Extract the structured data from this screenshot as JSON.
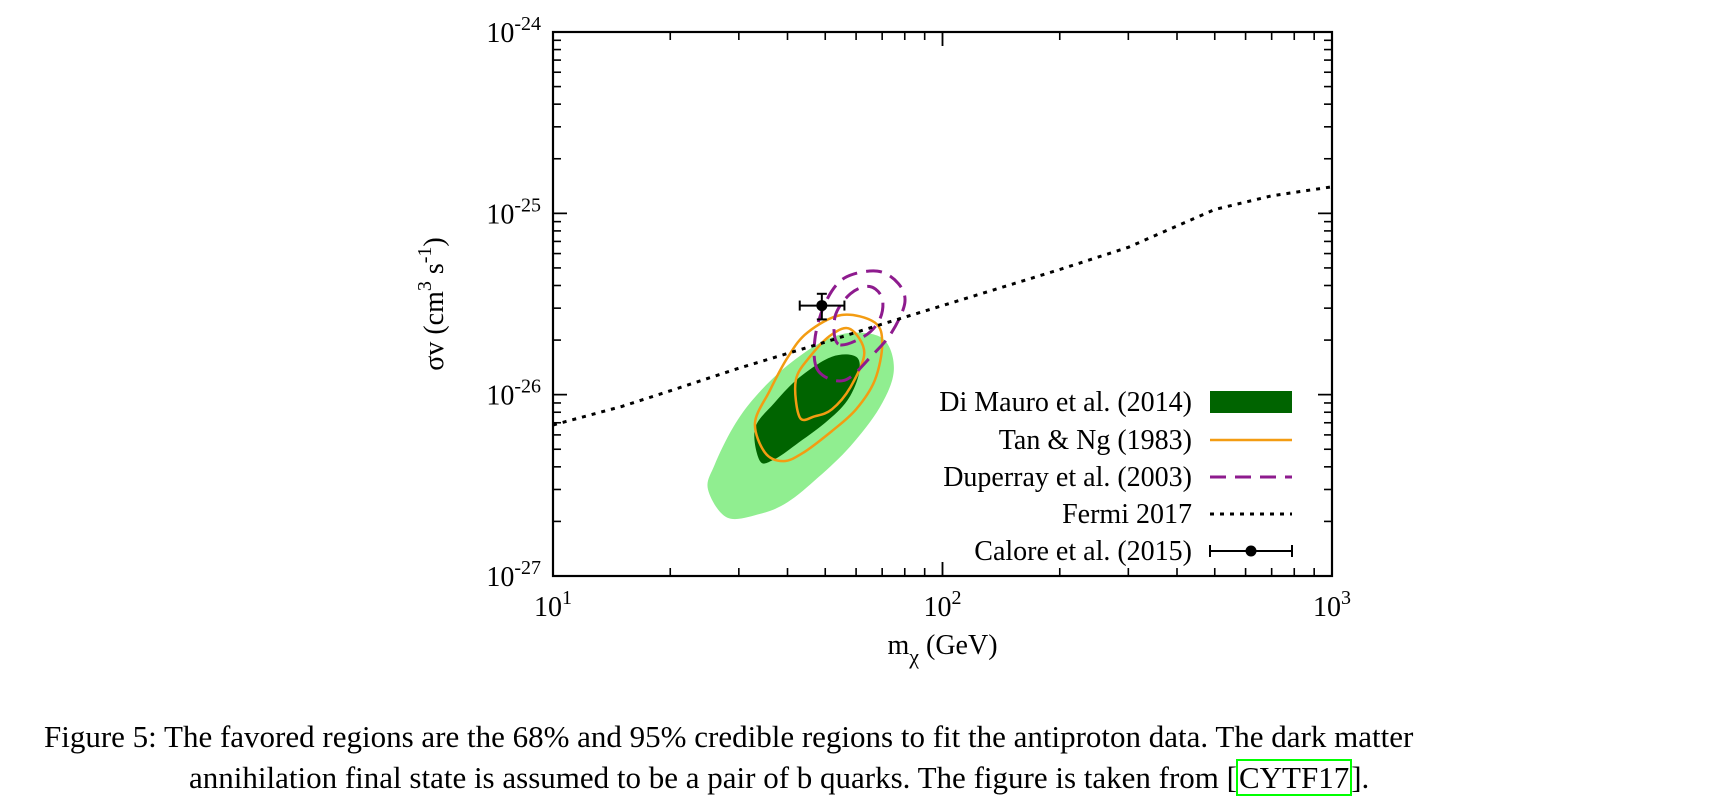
{
  "chart_data": {
    "type": "area",
    "x_scale": "log",
    "y_scale": "log",
    "xlim": [
      10,
      1000
    ],
    "ylim": [
      1e-27,
      1e-24
    ],
    "xlabel": "m_χ (GeV)",
    "ylabel": "σv (cm^3 s^-1)",
    "x_ticks": [
      {
        "value": 10,
        "base": "10",
        "exp": "1"
      },
      {
        "value": 100,
        "base": "10",
        "exp": "2"
      },
      {
        "value": 1000,
        "base": "10",
        "exp": "3"
      }
    ],
    "y_ticks": [
      {
        "value": 1e-27,
        "base": "10",
        "exp": "-27"
      },
      {
        "value": 1e-26,
        "base": "10",
        "exp": "-26"
      },
      {
        "value": 1e-25,
        "base": "10",
        "exp": "-25"
      },
      {
        "value": 1e-24,
        "base": "10",
        "exp": "-24"
      }
    ],
    "series": [
      {
        "name": "Di Mauro et al. (2014)",
        "kind": "region",
        "color_outer": "#90ee90",
        "color_inner": "#006400",
        "outer_95": [
          [
            28,
            2.1e-27
          ],
          [
            25,
            3e-27
          ],
          [
            26,
            4.1e-27
          ],
          [
            29,
            6.6e-27
          ],
          [
            33,
            9.7e-27
          ],
          [
            40,
            1.45e-26
          ],
          [
            50,
            2e-26
          ],
          [
            60,
            2.2e-26
          ],
          [
            71,
            2e-26
          ],
          [
            75,
            1.35e-26
          ],
          [
            69,
            8.5e-27
          ],
          [
            58,
            5.2e-27
          ],
          [
            48,
            3.5e-27
          ],
          [
            40,
            2.55e-27
          ],
          [
            34,
            2.2e-27
          ]
        ],
        "inner_68": [
          [
            34,
            4.3e-27
          ],
          [
            33,
            6.5e-27
          ],
          [
            37,
            9e-27
          ],
          [
            43,
            1.25e-26
          ],
          [
            52,
            1.62e-26
          ],
          [
            60,
            1.62e-26
          ],
          [
            61,
            1.3e-26
          ],
          [
            57,
            9.3e-27
          ],
          [
            50,
            7e-27
          ],
          [
            42,
            5.3e-27
          ],
          [
            37,
            4.4e-27
          ]
        ]
      },
      {
        "name": "Tan & Ng (1983)",
        "kind": "contour",
        "color": "#f39c12",
        "contours": [
          [
            [
              35,
              4.8e-27
            ],
            [
              33,
              7e-27
            ],
            [
              36,
              1.05e-26
            ],
            [
              40,
              1.6e-26
            ],
            [
              45,
              2.2e-26
            ],
            [
              55,
              2.75e-26
            ],
            [
              67,
              2.5e-26
            ],
            [
              70,
              1.9e-26
            ],
            [
              67,
              1.2e-26
            ],
            [
              60,
              8.3e-27
            ],
            [
              52,
              6.3e-27
            ],
            [
              44,
              4.8e-27
            ],
            [
              39,
              4.3e-27
            ]
          ],
          [
            [
              43,
              7.5e-27
            ],
            [
              42,
              1.2e-26
            ],
            [
              46,
              1.65e-26
            ],
            [
              52,
              2.15e-26
            ],
            [
              58,
              2.3e-26
            ],
            [
              63,
              1.7e-26
            ],
            [
              58,
              1.1e-26
            ],
            [
              52,
              8.3e-27
            ],
            [
              47,
              7.6e-27
            ]
          ]
        ]
      },
      {
        "name": "Duperray et al. (2003)",
        "kind": "contour",
        "dashed": true,
        "color": "#8e1b8e",
        "contours": [
          [
            [
              48,
              1.35e-26
            ],
            [
              47,
              2e-26
            ],
            [
              50,
              3.2e-26
            ],
            [
              56,
              4.4e-26
            ],
            [
              68,
              4.8e-26
            ],
            [
              77,
              4.1e-26
            ],
            [
              80,
              3.2e-26
            ],
            [
              74,
              2.2e-26
            ],
            [
              66,
              1.65e-26
            ],
            [
              56,
              1.2e-26
            ]
          ],
          [
            [
              54,
              1.9e-26
            ],
            [
              53,
              2.7e-26
            ],
            [
              58,
              3.6e-26
            ],
            [
              65,
              3.95e-26
            ],
            [
              70,
              3.4e-26
            ],
            [
              69,
              2.6e-26
            ],
            [
              63,
              2.1e-26
            ]
          ]
        ]
      },
      {
        "name": "Fermi 2017",
        "kind": "line",
        "dotted": true,
        "color": "#000000",
        "x": [
          10,
          15,
          20,
          30,
          50,
          70,
          100,
          150,
          200,
          300,
          500,
          700,
          1000
        ],
        "y": [
          6.8e-27,
          8.6e-27,
          1.05e-26,
          1.4e-26,
          1.95e-26,
          2.45e-26,
          3.1e-26,
          4.05e-26,
          4.9e-26,
          6.5e-26,
          1.05e-25,
          1.25e-25,
          1.4e-25
        ]
      },
      {
        "name": "Calore et al. (2015)",
        "kind": "point",
        "color": "#000000",
        "x": 49,
        "y": 3.1e-26,
        "x_err": [
          43,
          56
        ],
        "y_err": [
          2.6e-26,
          3.6e-26
        ]
      }
    ],
    "legend_position": "bottom-right",
    "grid": false
  },
  "caption": {
    "label": "Figure 5:",
    "text_line1": "The favored regions are the 68% and 95% credible regions to fit the antiproton data. The dark matter",
    "text_line2_before": "annihilation final state is assumed to be a pair of b quarks. The figure is taken from [",
    "citation": "CYTF17",
    "text_line2_after": "]."
  }
}
